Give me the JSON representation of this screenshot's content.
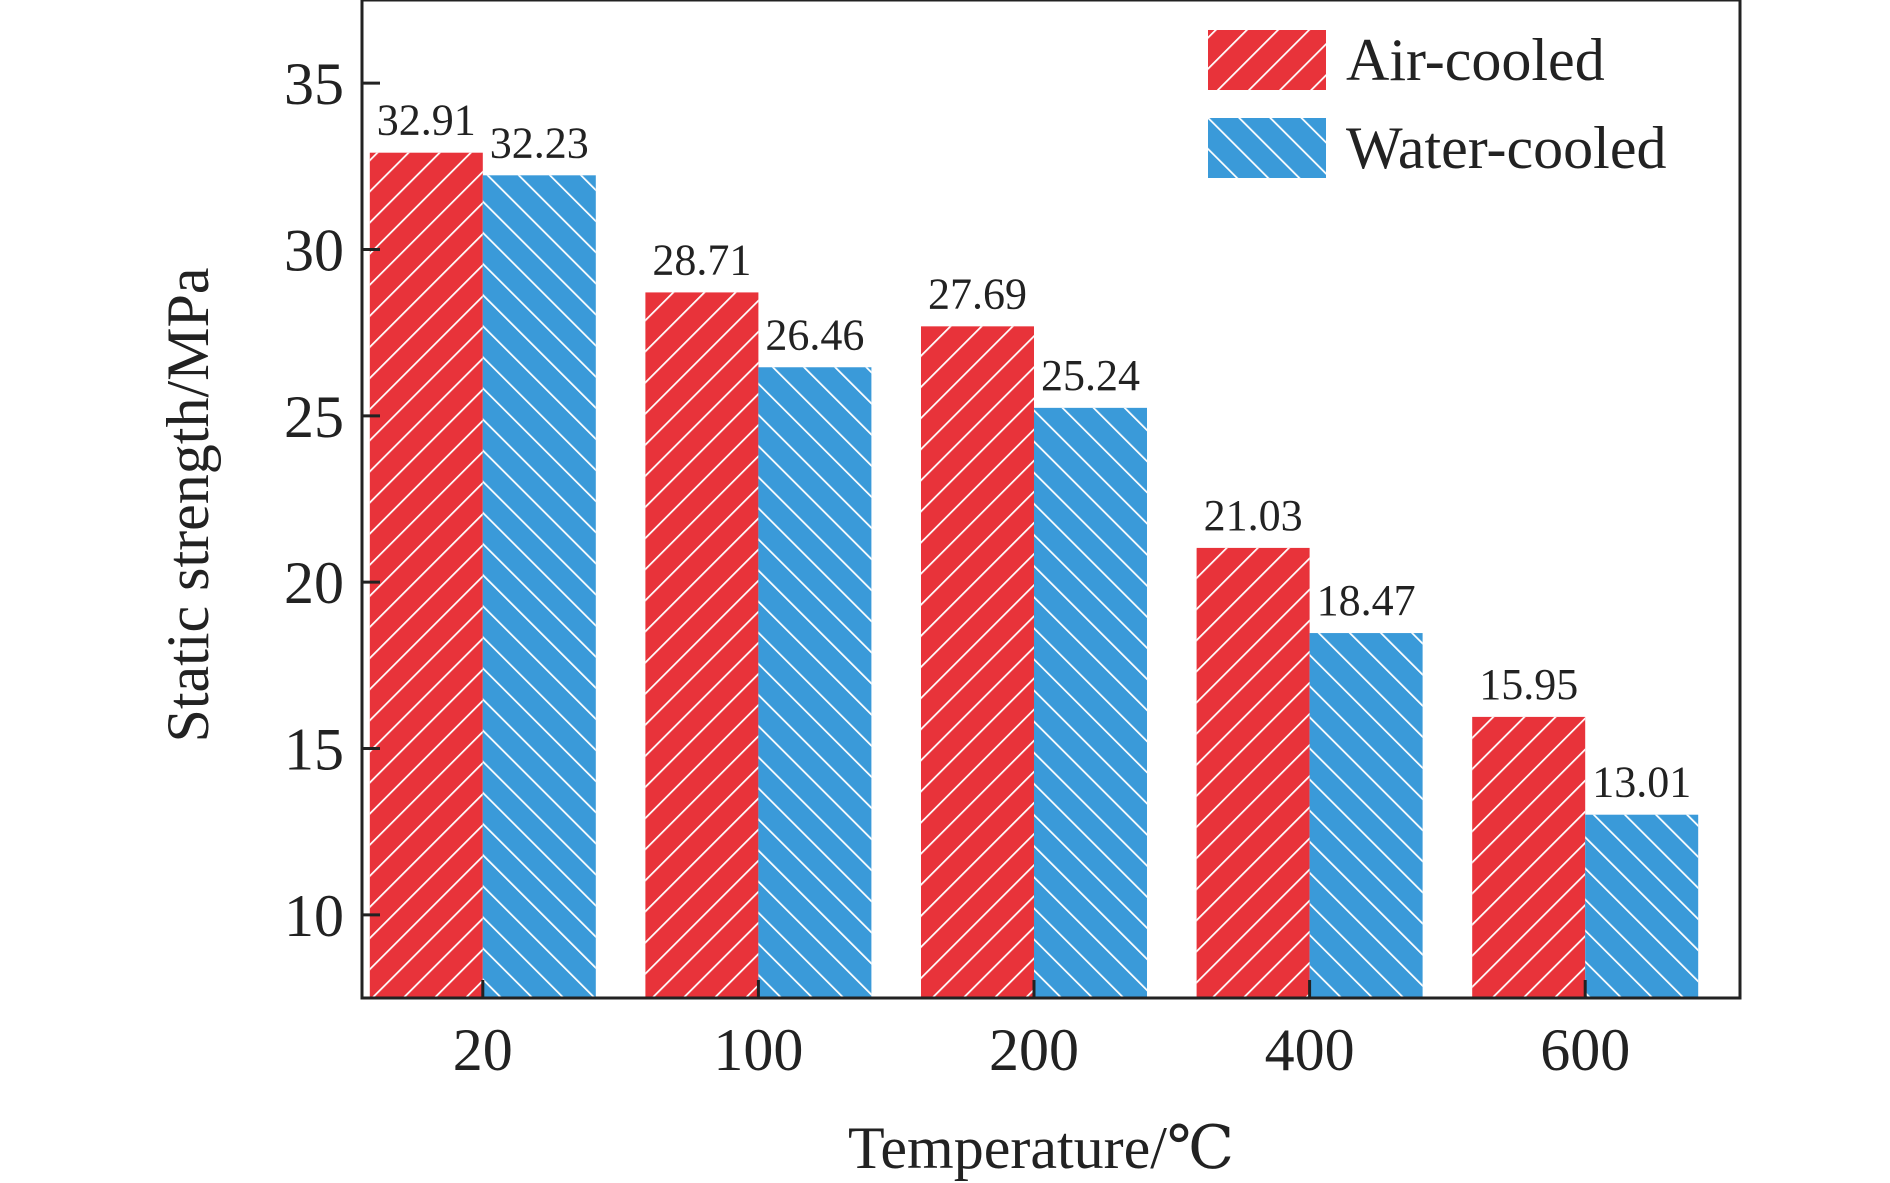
{
  "chart_data": {
    "type": "bar",
    "xlabel": "Temperature/℃",
    "ylabel": "Static strength/MPa",
    "categories": [
      "20",
      "100",
      "200",
      "400",
      "600"
    ],
    "series": [
      {
        "name": "Air-cooled",
        "values": [
          32.91,
          28.71,
          27.69,
          21.03,
          15.95
        ],
        "labels": [
          "32.91",
          "28.71",
          "27.69",
          "21.03",
          "15.95"
        ],
        "color": "#e8333a",
        "hatch": "forward-diagonal"
      },
      {
        "name": "Water-cooled",
        "values": [
          32.23,
          26.46,
          25.24,
          18.47,
          13.01
        ],
        "labels": [
          "32.23",
          "26.46",
          "25.24",
          "18.47",
          "13.01"
        ],
        "color": "#3a9ad9",
        "hatch": "back-diagonal"
      }
    ],
    "ylim": [
      7.5,
      37.5
    ],
    "yticks": [
      "10",
      "15",
      "20",
      "25",
      "30",
      "35"
    ],
    "grid": false,
    "legend_position": "top-right"
  }
}
